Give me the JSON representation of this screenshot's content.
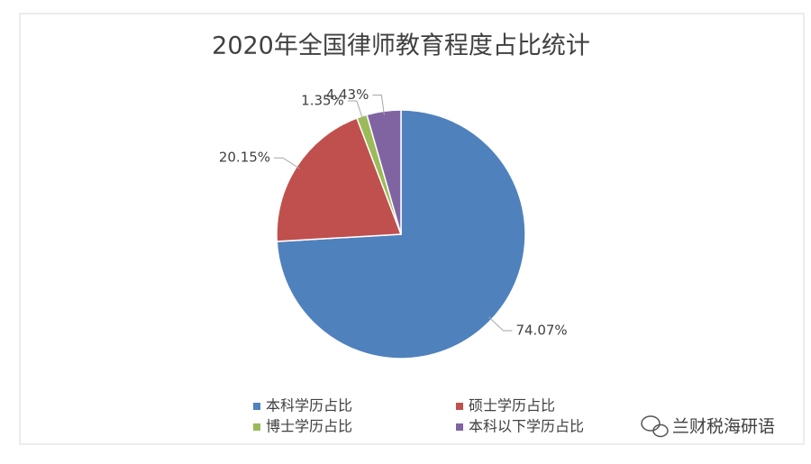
{
  "chart_data": {
    "type": "pie",
    "title": "2020年全国律师教育程度占比统计",
    "categories": [
      "本科学历占比",
      "硕士学历占比",
      "博士学历占比",
      "本科以下学历占比"
    ],
    "values": [
      74.07,
      20.15,
      1.35,
      4.43
    ],
    "value_labels": [
      "74.07%",
      "20.15%",
      "1.35%",
      "4.43%"
    ],
    "colors": [
      "#4f81bd",
      "#c0504d",
      "#9bbb59",
      "#8064a2"
    ],
    "legend": "bottom"
  },
  "watermark": "兰财税海研语"
}
